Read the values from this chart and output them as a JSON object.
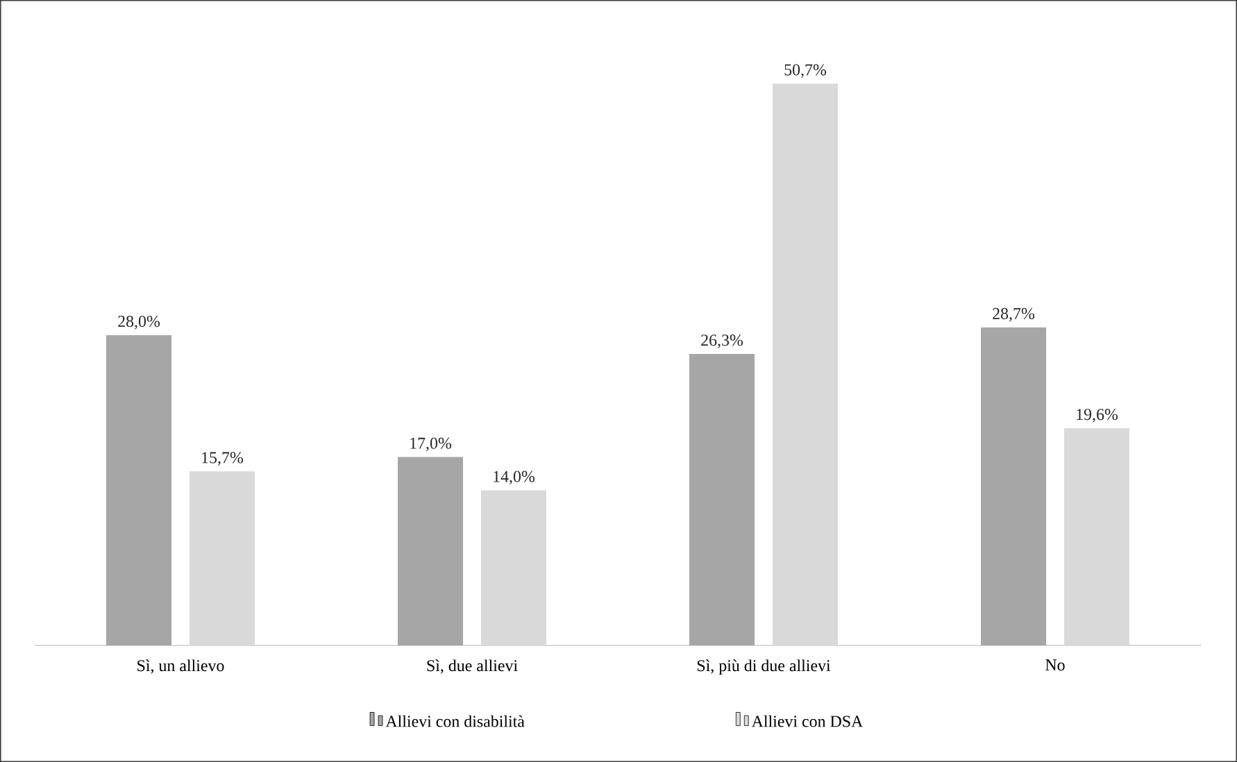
{
  "chart_data": {
    "type": "bar",
    "categories": [
      "Sì, un allievo",
      "Sì, due allievi",
      "Sì, più di due allievi",
      "No"
    ],
    "series": [
      {
        "name": "Allievi con disabilità",
        "color": "#a6a6a6",
        "values": [
          28.0,
          17.0,
          26.3,
          28.7
        ],
        "value_labels": [
          "28,0%",
          "17,0%",
          "26,3%",
          "28,7%"
        ]
      },
      {
        "name": "Allievi con DSA",
        "color": "#d9d9d9",
        "values": [
          15.7,
          14.0,
          50.7,
          19.6
        ],
        "value_labels": [
          "15,7%",
          "14,0%",
          "50,7%",
          "19,6%"
        ]
      }
    ],
    "legend": "bottom"
  }
}
